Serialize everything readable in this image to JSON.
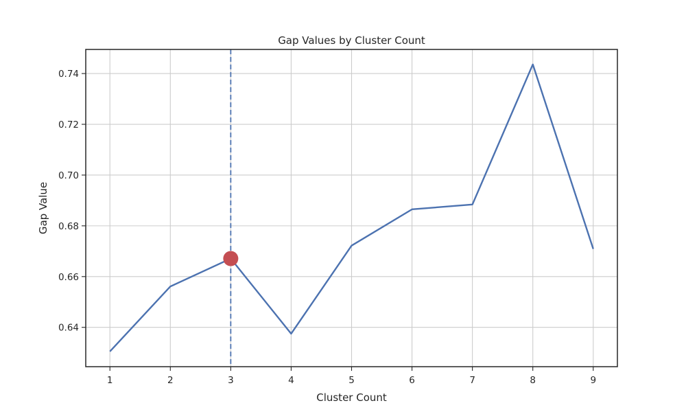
{
  "chart_data": {
    "type": "line",
    "title": "Gap Values by Cluster Count",
    "xlabel": "Cluster Count",
    "ylabel": "Gap Value",
    "x": [
      1,
      2,
      3,
      4,
      5,
      6,
      7,
      8,
      9
    ],
    "series": [
      {
        "values": [
          0.6305,
          0.6561,
          0.6671,
          0.6375,
          0.6722,
          0.6865,
          0.6884,
          0.7436,
          0.6709
        ]
      }
    ],
    "xlim": [
      0.6,
      9.4
    ],
    "ylim": [
      0.6245,
      0.7495
    ],
    "xticks": [
      1,
      2,
      3,
      4,
      5,
      6,
      7,
      8,
      9
    ],
    "yticks": [
      0.64,
      0.66,
      0.68,
      0.7,
      0.72,
      0.74
    ],
    "ytick_labels": [
      "0.64",
      "0.66",
      "0.68",
      "0.70",
      "0.72",
      "0.74"
    ],
    "grid": true,
    "legend": "none",
    "highlight": {
      "x": 3,
      "y": 0.6671
    },
    "vline": {
      "x": 3,
      "style": "dashed"
    },
    "colors": {
      "line": "#4c72b0",
      "marker": "#c44e52",
      "vline": "#4c72b0",
      "grid": "#cccccc",
      "frame": "#262626"
    }
  }
}
